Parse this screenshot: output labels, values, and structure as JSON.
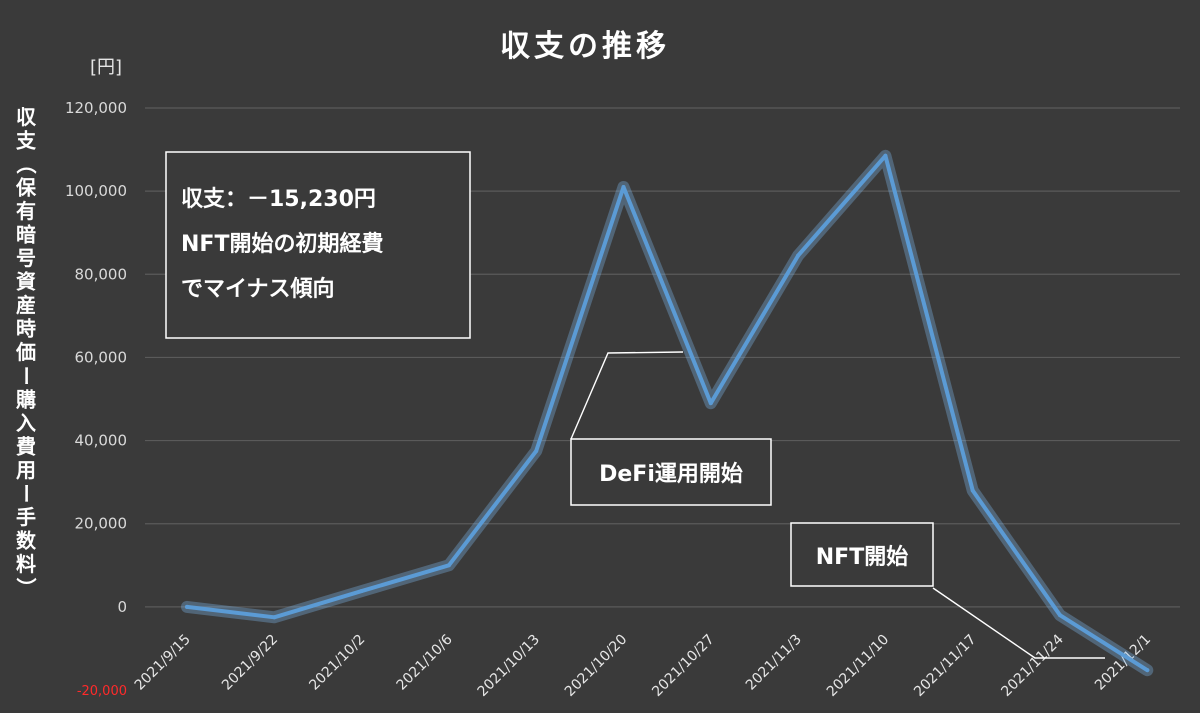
{
  "chart_data": {
    "type": "line",
    "title": "収支の推移",
    "unit_label": "[円]",
    "ylabel": "収支（保有暗号資産時価ー購入費用ー手数料）",
    "ylim": [
      -20000,
      120000
    ],
    "yticks": [
      {
        "value": 120000,
        "label": "120,000"
      },
      {
        "value": 100000,
        "label": "100,000"
      },
      {
        "value": 80000,
        "label": "80,000"
      },
      {
        "value": 60000,
        "label": "60,000"
      },
      {
        "value": 40000,
        "label": "40,000"
      },
      {
        "value": 20000,
        "label": "20,000"
      },
      {
        "value": 0,
        "label": "0"
      },
      {
        "value": -20000,
        "label": "-20,000"
      }
    ],
    "grid": true,
    "categories": [
      "2021/9/15",
      "2021/9/22",
      "2021/10/2",
      "2021/10/6",
      "2021/10/13",
      "2021/10/20",
      "2021/10/27",
      "2021/11/3",
      "2021/11/10",
      "2021/11/17",
      "2021/11/24",
      "2021/12/1"
    ],
    "series": [
      {
        "color": "#5b9bd5",
        "values": [
          0,
          -2500,
          3800,
          10000,
          37500,
          101000,
          49000,
          84500,
          108500,
          28000,
          -2000,
          -15230
        ]
      }
    ],
    "annotations": [
      {
        "lines": [
          "収支：－15,230円",
          "NFT開始の初期経費",
          "でマイナス傾向"
        ]
      },
      {
        "lines": [
          "DeFi運用開始"
        ],
        "points_to": "2021/10/20"
      },
      {
        "lines": [
          "NFT開始"
        ],
        "points_to": "2021/11/24"
      }
    ]
  }
}
